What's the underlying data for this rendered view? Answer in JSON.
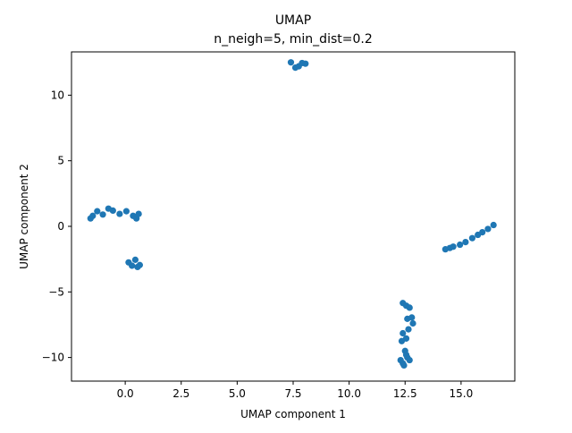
{
  "chart_data": {
    "type": "scatter",
    "title": "UMAP",
    "subtitle": "n_neigh=5, min_dist=0.2",
    "xlabel": "UMAP component 1",
    "ylabel": "UMAP component 2",
    "xlim": [
      -2.4,
      17.4
    ],
    "ylim": [
      -11.8,
      13.3
    ],
    "xticks": [
      0.0,
      2.5,
      5.0,
      7.5,
      10.0,
      12.5,
      15.0
    ],
    "xtick_labels": [
      "0.0",
      "2.5",
      "5.0",
      "7.5",
      "10.0",
      "12.5",
      "15.0"
    ],
    "yticks": [
      -10,
      -5,
      0,
      5,
      10
    ],
    "ytick_labels": [
      "−10",
      "−5",
      "0",
      "5",
      "10"
    ],
    "grid": false,
    "marker_color": "#1f77b4",
    "series": [
      {
        "points": [
          [
            7.4,
            12.5
          ],
          [
            7.6,
            12.1
          ],
          [
            7.75,
            12.2
          ],
          [
            7.9,
            12.45
          ],
          [
            8.05,
            12.4
          ],
          [
            -1.55,
            0.6
          ],
          [
            -1.45,
            0.8
          ],
          [
            -1.25,
            1.15
          ],
          [
            -1.0,
            0.9
          ],
          [
            -0.75,
            1.35
          ],
          [
            -0.55,
            1.2
          ],
          [
            -0.25,
            0.95
          ],
          [
            0.05,
            1.15
          ],
          [
            0.35,
            0.8
          ],
          [
            0.5,
            0.6
          ],
          [
            0.6,
            0.95
          ],
          [
            0.15,
            -2.75
          ],
          [
            0.3,
            -3.0
          ],
          [
            0.45,
            -2.55
          ],
          [
            0.55,
            -3.1
          ],
          [
            0.65,
            -2.95
          ],
          [
            14.3,
            -1.75
          ],
          [
            14.5,
            -1.65
          ],
          [
            14.65,
            -1.55
          ],
          [
            14.95,
            -1.4
          ],
          [
            15.2,
            -1.2
          ],
          [
            15.5,
            -0.9
          ],
          [
            15.75,
            -0.65
          ],
          [
            15.95,
            -0.45
          ],
          [
            16.2,
            -0.2
          ],
          [
            16.45,
            0.1
          ],
          [
            12.4,
            -5.85
          ],
          [
            12.55,
            -6.05
          ],
          [
            12.7,
            -6.2
          ],
          [
            12.6,
            -7.05
          ],
          [
            12.8,
            -6.95
          ],
          [
            12.85,
            -7.4
          ],
          [
            12.65,
            -7.85
          ],
          [
            12.4,
            -8.15
          ],
          [
            12.55,
            -8.55
          ],
          [
            12.35,
            -8.75
          ],
          [
            12.5,
            -9.5
          ],
          [
            12.55,
            -9.8
          ],
          [
            12.6,
            -10.0
          ],
          [
            12.7,
            -10.2
          ],
          [
            12.3,
            -10.2
          ],
          [
            12.4,
            -10.45
          ],
          [
            12.45,
            -10.6
          ]
        ]
      }
    ]
  }
}
